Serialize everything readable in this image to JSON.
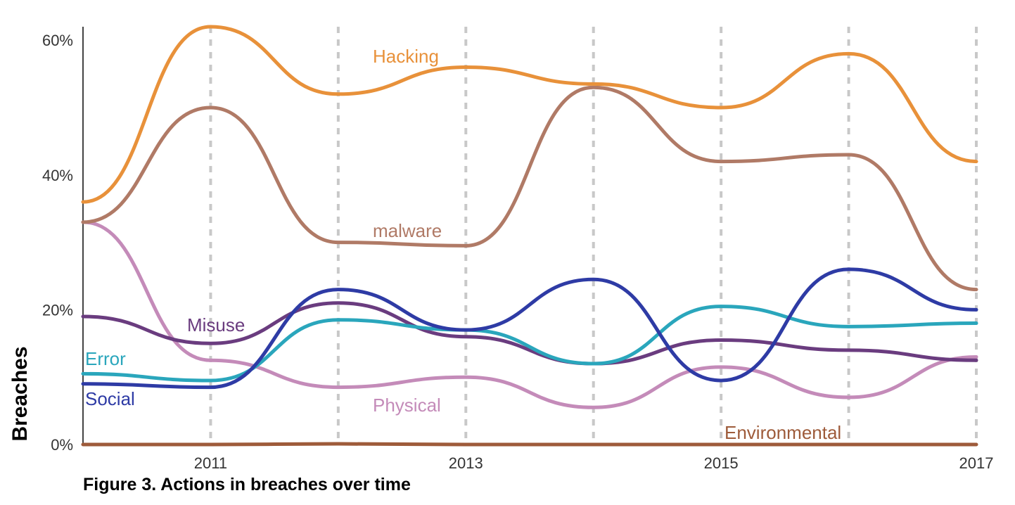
{
  "figure": {
    "caption": "Figure 3.  Actions in breaches over time"
  },
  "chart_data": {
    "type": "line",
    "ylabel": "Breaches",
    "xlabel": "",
    "x": [
      2010,
      2011,
      2012,
      2013,
      2014,
      2015,
      2016,
      2017
    ],
    "xlim": [
      2010,
      2017
    ],
    "ylim": [
      0,
      62
    ],
    "x_ticks": [
      2011,
      2013,
      2015,
      2017
    ],
    "x_tick_labels": [
      "2011",
      "2013",
      "2015",
      "2017"
    ],
    "y_ticks": [
      0,
      20,
      40,
      60
    ],
    "y_tick_labels": [
      "0%",
      "20%",
      "40%",
      "60%"
    ],
    "vertical_gridlines": "dashed at each year",
    "legend": "inline labels",
    "series": [
      {
        "name": "Hacking",
        "color": "#E8913A",
        "values": [
          36,
          62,
          52,
          56,
          53.5,
          50,
          58,
          42
        ]
      },
      {
        "name": "malware",
        "color": "#B07A66",
        "values": [
          33,
          50,
          30,
          29.5,
          53,
          42,
          43,
          23
        ]
      },
      {
        "name": "Social",
        "color": "#2E3BA5",
        "values": [
          9,
          8.5,
          23,
          17,
          24.5,
          9.5,
          26,
          20
        ]
      },
      {
        "name": "Misuse",
        "color": "#6A3C7F",
        "values": [
          19,
          15,
          21,
          16,
          12,
          15.5,
          14,
          12.5
        ]
      },
      {
        "name": "Error",
        "color": "#2AA6BC",
        "values": [
          10.5,
          9.5,
          18.5,
          17,
          12,
          20.5,
          17.5,
          18
        ]
      },
      {
        "name": "Physical",
        "color": "#C48BB9",
        "values": [
          33,
          12.5,
          8.5,
          10,
          5.5,
          11.5,
          7,
          13
        ]
      },
      {
        "name": "Environmental",
        "color": "#9E5B3A",
        "values": [
          0,
          0,
          0.1,
          0,
          0,
          0,
          0,
          0
        ]
      }
    ],
    "labels": {
      "Hacking": "Hacking",
      "malware": "malware",
      "Misuse": "Misuse",
      "Error": "Error",
      "Social": "Social",
      "Physical": "Physical",
      "Environmental": "Environmental"
    }
  }
}
